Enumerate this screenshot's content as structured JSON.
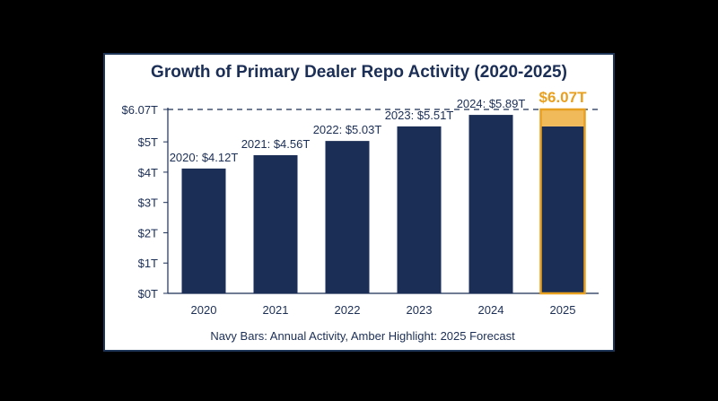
{
  "chart_data": {
    "type": "bar",
    "title": "Growth of Primary Dealer Repo Activity (2020-2025)",
    "categories": [
      "2020",
      "2021",
      "2022",
      "2023",
      "2024",
      "2025"
    ],
    "values": [
      4.12,
      4.56,
      5.03,
      5.51,
      5.89,
      6.07
    ],
    "data_labels": [
      "2020: $4.12T",
      "2021: $4.56T",
      "2022: $5.03T",
      "2023: $5.51T",
      "2024: $5.89T",
      "$6.07T"
    ],
    "y_ticks": [
      {
        "value": 0,
        "label": "$0T"
      },
      {
        "value": 1,
        "label": "$1T"
      },
      {
        "value": 2,
        "label": "$2T"
      },
      {
        "value": 3,
        "label": "$3T"
      },
      {
        "value": 4,
        "label": "$4T"
      },
      {
        "value": 5,
        "label": "$5T"
      },
      {
        "value": 6.07,
        "label": "$6.07T"
      }
    ],
    "ylim": [
      0,
      6.07
    ],
    "reference_line": {
      "value": 6.07,
      "style": "dashed"
    },
    "highlight": {
      "category": "2025",
      "base_value": 5.51,
      "value": 6.07
    },
    "grid": false,
    "caption": "Navy Bars: Annual Activity, Amber Highlight: 2025 Forecast",
    "colors": {
      "bar": "#1b2e55",
      "highlight_fill": "#f0b95a",
      "highlight_border": "#e8a020",
      "text": "#1b2e55",
      "frame_border": "#1f3558"
    }
  }
}
